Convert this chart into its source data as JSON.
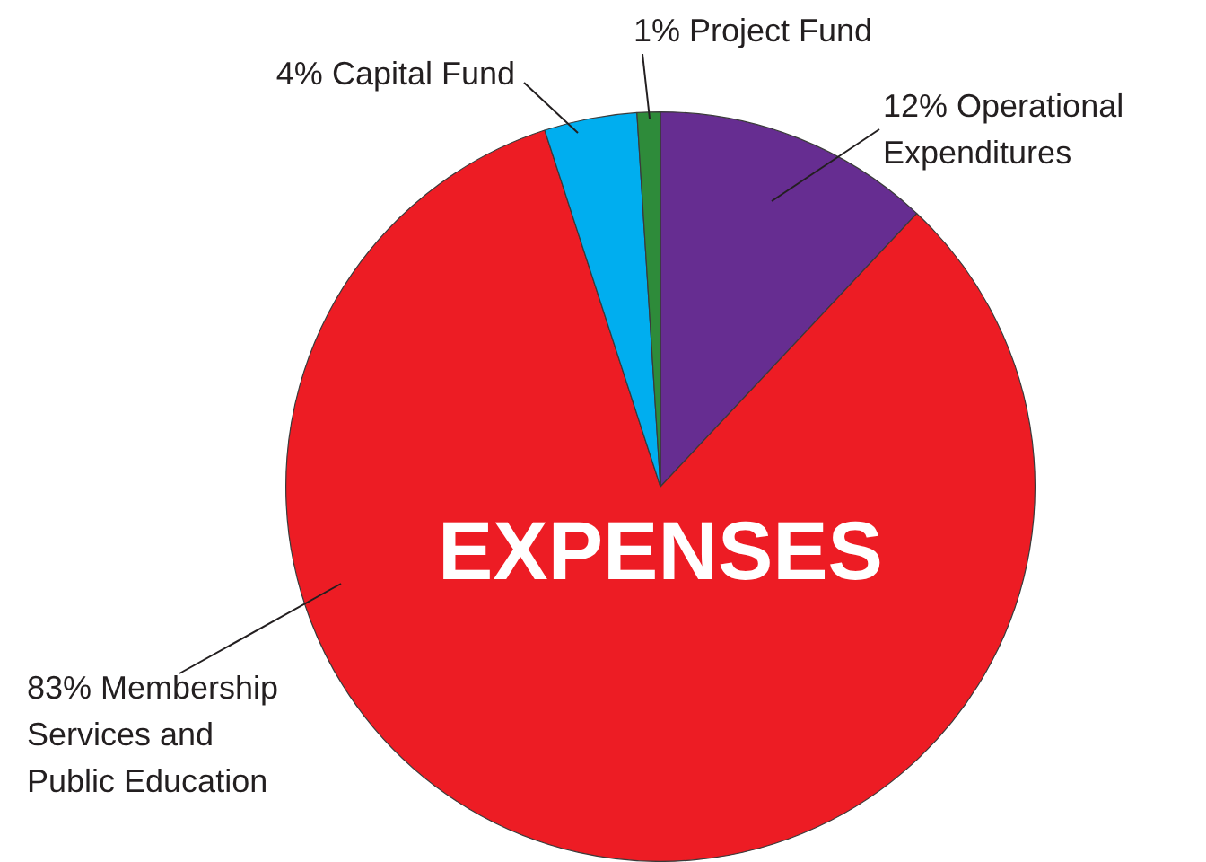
{
  "chart_data": {
    "type": "pie",
    "title": "EXPENSES",
    "categories": [
      "Operational Expenditures",
      "Membership Services and Public Education",
      "Capital Fund",
      "Project Fund"
    ],
    "values": [
      12,
      83,
      4,
      1
    ],
    "colors": [
      "#662d91",
      "#ed1c24",
      "#00aeef",
      "#2e8b3a"
    ],
    "value_labels": [
      "12%",
      "83%",
      "4%",
      "1%"
    ],
    "legend": false
  }
}
